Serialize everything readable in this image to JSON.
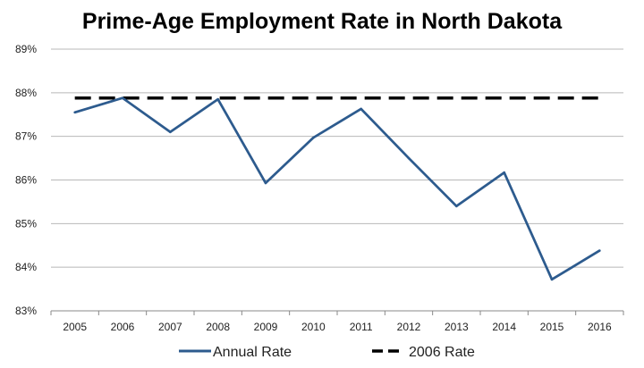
{
  "chart_data": {
    "type": "line",
    "title": "Prime-Age Employment Rate in North Dakota",
    "categories": [
      "2005",
      "2006",
      "2007",
      "2008",
      "2009",
      "2010",
      "2011",
      "2012",
      "2013",
      "2014",
      "2015",
      "2016"
    ],
    "series": [
      {
        "name": "Annual Rate",
        "values": [
          87.55,
          87.88,
          87.1,
          87.85,
          85.93,
          86.97,
          87.63,
          86.5,
          85.4,
          86.17,
          83.72,
          84.38
        ],
        "color": "#2d5b8e",
        "style": "solid"
      },
      {
        "name": "2006 Rate",
        "values": [
          87.88,
          87.88,
          87.88,
          87.88,
          87.88,
          87.88,
          87.88,
          87.88,
          87.88,
          87.88,
          87.88,
          87.88
        ],
        "color": "#000000",
        "style": "dashed"
      }
    ],
    "ylim": [
      83,
      89
    ],
    "yticks": [
      "83%",
      "84%",
      "85%",
      "86%",
      "87%",
      "88%",
      "89%"
    ],
    "grid": true,
    "legend": "bottom"
  }
}
